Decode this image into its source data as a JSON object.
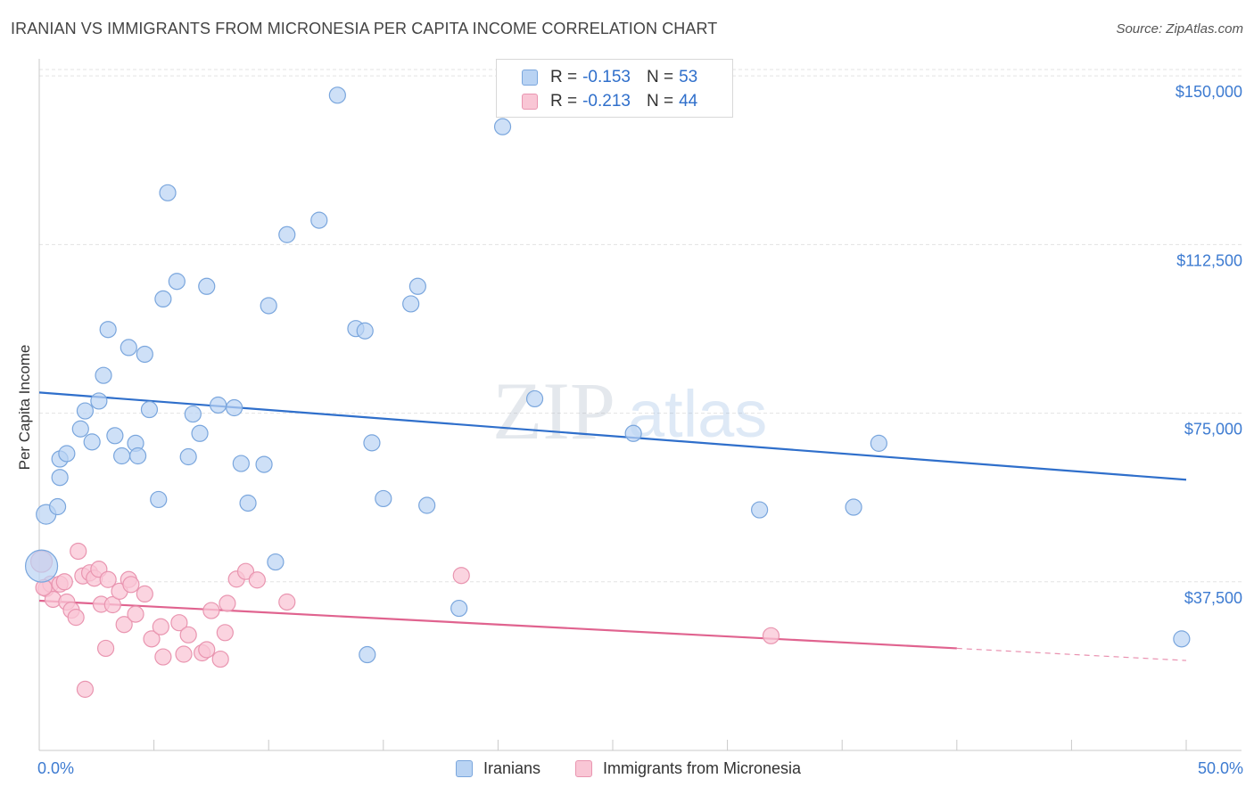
{
  "title": "IRANIAN VS IMMIGRANTS FROM MICRONESIA PER CAPITA INCOME CORRELATION CHART",
  "source": "Source: ZipAtlas.com",
  "watermark": {
    "zip": "ZIP",
    "atlas": "atlas"
  },
  "legend": {
    "r_label": "R =",
    "n_label": "N =",
    "series1": {
      "r": "-0.153",
      "n": "53"
    },
    "series2": {
      "r": "-0.213",
      "n": "44"
    }
  },
  "bottom_legend": {
    "series1": "Iranians",
    "series2": "Immigrants from Micronesia"
  },
  "colors": {
    "blue_fill": "#b9d3f3",
    "blue_stroke": "#7aa6dd",
    "blue_line": "#2f6fcb",
    "pink_fill": "#f9c6d5",
    "pink_stroke": "#e995b0",
    "pink_line": "#e0638f",
    "tick_label": "#3d7bd1",
    "grid": "#e3e3e3"
  },
  "chart_data": {
    "type": "scatter",
    "title": "IRANIAN VS IMMIGRANTS FROM MICRONESIA PER CAPITA INCOME CORRELATION CHART",
    "xlabel": "",
    "ylabel": "Per Capita Income",
    "xlim": [
      0,
      50
    ],
    "ylim": [
      0,
      153000
    ],
    "x_tick_labels": [
      "0.0%",
      "50.0%"
    ],
    "y_ticks": [
      37500,
      75000,
      112500,
      150000
    ],
    "y_tick_labels": [
      "$37,500",
      "$75,000",
      "$112,500",
      "$150,000"
    ],
    "grid": "horizontal dashed",
    "legend_position": "top-center",
    "series": [
      {
        "name": "Iranians",
        "color": "#b9d3f3",
        "trend": {
          "x": [
            0,
            50
          ],
          "y": [
            79600,
            60200
          ]
        },
        "points": [
          [
            0.3,
            52500
          ],
          [
            0.9,
            60700
          ],
          [
            0.8,
            54200
          ],
          [
            0.9,
            64800
          ],
          [
            1.2,
            66000
          ],
          [
            1.8,
            71500
          ],
          [
            2.0,
            75500
          ],
          [
            2.3,
            68600
          ],
          [
            2.6,
            77700
          ],
          [
            2.8,
            83400
          ],
          [
            3.0,
            93600
          ],
          [
            3.3,
            70000
          ],
          [
            3.6,
            65500
          ],
          [
            3.9,
            89600
          ],
          [
            4.2,
            68300
          ],
          [
            4.3,
            65500
          ],
          [
            4.6,
            88100
          ],
          [
            4.8,
            75800
          ],
          [
            5.2,
            55800
          ],
          [
            5.4,
            100400
          ],
          [
            5.6,
            124000
          ],
          [
            6.0,
            104300
          ],
          [
            6.5,
            65300
          ],
          [
            6.7,
            74800
          ],
          [
            7.0,
            70500
          ],
          [
            7.3,
            103200
          ],
          [
            7.8,
            76800
          ],
          [
            8.5,
            76200
          ],
          [
            8.8,
            63800
          ],
          [
            9.1,
            55000
          ],
          [
            9.8,
            63600
          ],
          [
            10.0,
            98900
          ],
          [
            10.3,
            41900
          ],
          [
            10.8,
            114700
          ],
          [
            12.2,
            117900
          ],
          [
            13.0,
            145700
          ],
          [
            13.8,
            93800
          ],
          [
            14.2,
            93300
          ],
          [
            14.3,
            21300
          ],
          [
            14.5,
            68400
          ],
          [
            15.0,
            56000
          ],
          [
            16.2,
            99300
          ],
          [
            16.5,
            103200
          ],
          [
            16.9,
            54500
          ],
          [
            18.3,
            31600
          ],
          [
            20.2,
            138700
          ],
          [
            21.6,
            78200
          ],
          [
            25.9,
            70500
          ],
          [
            31.4,
            53500
          ],
          [
            35.5,
            54100
          ],
          [
            36.6,
            68300
          ],
          [
            49.8,
            24800
          ],
          [
            0.1,
            41000
          ]
        ]
      },
      {
        "name": "Immigrants from Micronesia",
        "color": "#f9c6d5",
        "trend": {
          "x": [
            0,
            40
          ],
          "y": [
            33300,
            22700
          ]
        },
        "trend_dashed_extension": {
          "x": [
            40,
            50
          ],
          "y": [
            22700,
            20000
          ]
        },
        "points": [
          [
            0.1,
            42000
          ],
          [
            0.3,
            36000
          ],
          [
            0.5,
            37000
          ],
          [
            0.6,
            33600
          ],
          [
            0.9,
            37000
          ],
          [
            1.1,
            37500
          ],
          [
            1.2,
            33000
          ],
          [
            1.4,
            31200
          ],
          [
            1.6,
            29600
          ],
          [
            1.7,
            44300
          ],
          [
            1.9,
            38800
          ],
          [
            2.0,
            13600
          ],
          [
            2.2,
            39500
          ],
          [
            2.4,
            38300
          ],
          [
            2.6,
            40300
          ],
          [
            2.7,
            32500
          ],
          [
            2.9,
            22700
          ],
          [
            3.0,
            38000
          ],
          [
            3.2,
            32400
          ],
          [
            3.5,
            35400
          ],
          [
            3.7,
            28000
          ],
          [
            3.9,
            38000
          ],
          [
            4.0,
            36900
          ],
          [
            4.2,
            30300
          ],
          [
            4.6,
            34800
          ],
          [
            4.9,
            24800
          ],
          [
            5.3,
            27500
          ],
          [
            5.4,
            20800
          ],
          [
            6.1,
            28400
          ],
          [
            6.3,
            21400
          ],
          [
            6.5,
            25700
          ],
          [
            7.1,
            21700
          ],
          [
            7.3,
            22400
          ],
          [
            7.5,
            31100
          ],
          [
            7.9,
            20300
          ],
          [
            8.1,
            26200
          ],
          [
            8.2,
            32700
          ],
          [
            8.6,
            38100
          ],
          [
            9.0,
            39800
          ],
          [
            9.5,
            37900
          ],
          [
            10.8,
            33000
          ],
          [
            18.4,
            38900
          ],
          [
            31.9,
            25500
          ],
          [
            0.2,
            36200
          ]
        ]
      }
    ]
  }
}
